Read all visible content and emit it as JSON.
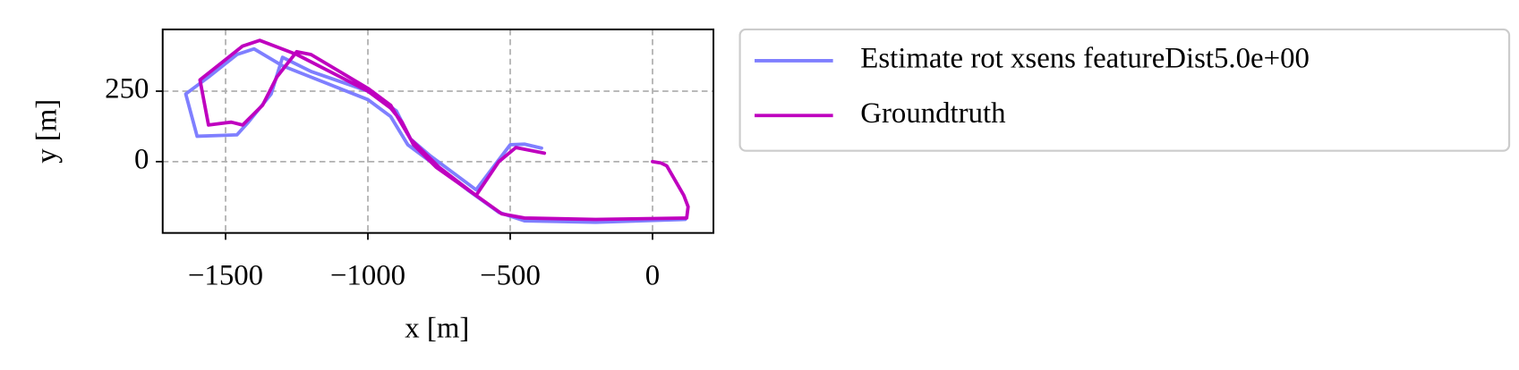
{
  "chart_data": {
    "type": "line",
    "xlabel": "x [m]",
    "ylabel": "y [m]",
    "xlim": [
      -1721,
      214
    ],
    "ylim": [
      -253,
      469
    ],
    "xticks": [
      {
        "value": -1500,
        "label": "−1500"
      },
      {
        "value": -1000,
        "label": "−1000"
      },
      {
        "value": -500,
        "label": "−500"
      },
      0
    ],
    "yticks": [
      0,
      250
    ],
    "grid": true,
    "legend": "outside upper left",
    "series": [
      {
        "name": "Estimate rot xsens featureDist5.0e+00",
        "color": "#7f7fff",
        "x": [
          115,
          -200,
          -450,
          -540,
          -650,
          -780,
          -860,
          -920,
          -1000,
          -1200,
          -1300,
          -1400,
          -1460,
          -1560,
          -1640,
          -1600,
          -1460,
          -1420,
          -1340,
          -1300,
          -1200,
          -1000,
          -900,
          -850,
          -780,
          -620,
          -560,
          -500,
          -450,
          -390
        ],
        "y": [
          -205,
          -215,
          -210,
          -180,
          -100,
          0,
          60,
          160,
          220,
          300,
          340,
          400,
          380,
          300,
          240,
          90,
          95,
          140,
          240,
          370,
          320,
          250,
          180,
          80,
          20,
          -100,
          -20,
          60,
          62,
          48
        ]
      },
      {
        "name": "Groundtruth",
        "color": "#bf00bf",
        "x": [
          0,
          30,
          50,
          110,
          125,
          120,
          -200,
          -450,
          -530,
          -620,
          -760,
          -840,
          -880,
          -920,
          -1000,
          -1250,
          -1380,
          -1440,
          -1590,
          -1560,
          -1480,
          -1440,
          -1370,
          -1320,
          -1250,
          -1200,
          -1000,
          -920,
          -850,
          -750,
          -620,
          -540,
          -480,
          -380
        ],
        "y": [
          0,
          -5,
          -15,
          -120,
          -160,
          -200,
          -205,
          -200,
          -185,
          -120,
          -20,
          60,
          140,
          190,
          250,
          380,
          430,
          410,
          290,
          130,
          140,
          130,
          200,
          300,
          390,
          380,
          260,
          200,
          80,
          -20,
          -120,
          0,
          50,
          30
        ]
      }
    ]
  }
}
